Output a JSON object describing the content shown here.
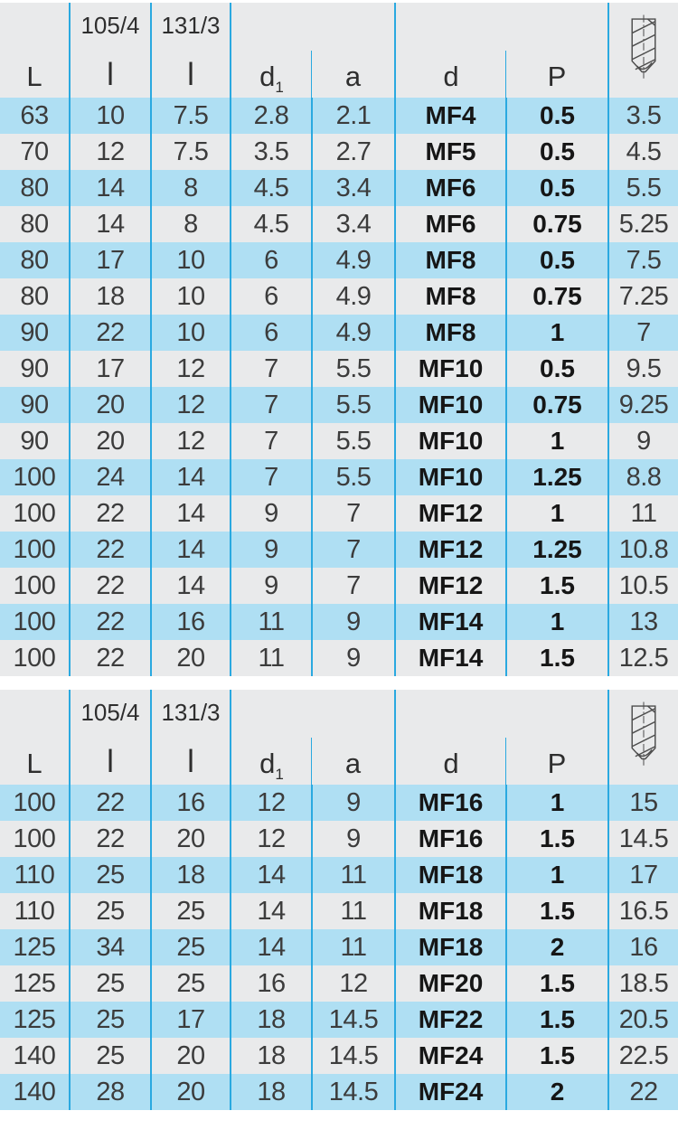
{
  "colors": {
    "row_blue": "#afdff3",
    "row_gray": "#e9eaeb",
    "header_bg": "#e9eaeb",
    "grid_line": "#2aa9e0",
    "text": "#3c3c3c",
    "bold_text": "#161616",
    "page_bg": "#ffffff"
  },
  "header": {
    "L": "L",
    "standard_1": "105/4",
    "standard_2": "131/3",
    "l1": "l",
    "l2": "l",
    "d1_base": "d",
    "d1_sub": "1",
    "a": "a",
    "d": "d",
    "P": "P",
    "icon": "drill-bit-icon"
  },
  "tables": [
    {
      "rows": [
        [
          "63",
          "10",
          "7.5",
          "2.8",
          "2.1",
          "MF4",
          "0.5",
          "3.5"
        ],
        [
          "70",
          "12",
          "7.5",
          "3.5",
          "2.7",
          "MF5",
          "0.5",
          "4.5"
        ],
        [
          "80",
          "14",
          "8",
          "4.5",
          "3.4",
          "MF6",
          "0.5",
          "5.5"
        ],
        [
          "80",
          "14",
          "8",
          "4.5",
          "3.4",
          "MF6",
          "0.75",
          "5.25"
        ],
        [
          "80",
          "17",
          "10",
          "6",
          "4.9",
          "MF8",
          "0.5",
          "7.5"
        ],
        [
          "80",
          "18",
          "10",
          "6",
          "4.9",
          "MF8",
          "0.75",
          "7.25"
        ],
        [
          "90",
          "22",
          "10",
          "6",
          "4.9",
          "MF8",
          "1",
          "7"
        ],
        [
          "90",
          "17",
          "12",
          "7",
          "5.5",
          "MF10",
          "0.5",
          "9.5"
        ],
        [
          "90",
          "20",
          "12",
          "7",
          "5.5",
          "MF10",
          "0.75",
          "9.25"
        ],
        [
          "90",
          "20",
          "12",
          "7",
          "5.5",
          "MF10",
          "1",
          "9"
        ],
        [
          "100",
          "24",
          "14",
          "7",
          "5.5",
          "MF10",
          "1.25",
          "8.8"
        ],
        [
          "100",
          "22",
          "14",
          "9",
          "7",
          "MF12",
          "1",
          "11"
        ],
        [
          "100",
          "22",
          "14",
          "9",
          "7",
          "MF12",
          "1.25",
          "10.8"
        ],
        [
          "100",
          "22",
          "14",
          "9",
          "7",
          "MF12",
          "1.5",
          "10.5"
        ],
        [
          "100",
          "22",
          "16",
          "11",
          "9",
          "MF14",
          "1",
          "13"
        ],
        [
          "100",
          "22",
          "20",
          "11",
          "9",
          "MF14",
          "1.5",
          "12.5"
        ]
      ]
    },
    {
      "rows": [
        [
          "100",
          "22",
          "16",
          "12",
          "9",
          "MF16",
          "1",
          "15"
        ],
        [
          "100",
          "22",
          "20",
          "12",
          "9",
          "MF16",
          "1.5",
          "14.5"
        ],
        [
          "110",
          "25",
          "18",
          "14",
          "11",
          "MF18",
          "1",
          "17"
        ],
        [
          "110",
          "25",
          "25",
          "14",
          "11",
          "MF18",
          "1.5",
          "16.5"
        ],
        [
          "125",
          "34",
          "25",
          "14",
          "11",
          "MF18",
          "2",
          "16"
        ],
        [
          "125",
          "25",
          "25",
          "16",
          "12",
          "MF20",
          "1.5",
          "18.5"
        ],
        [
          "125",
          "25",
          "17",
          "18",
          "14.5",
          "MF22",
          "1.5",
          "20.5"
        ],
        [
          "140",
          "25",
          "20",
          "18",
          "14.5",
          "MF24",
          "1.5",
          "22.5"
        ],
        [
          "140",
          "28",
          "20",
          "18",
          "14.5",
          "MF24",
          "2",
          "22"
        ]
      ]
    }
  ]
}
